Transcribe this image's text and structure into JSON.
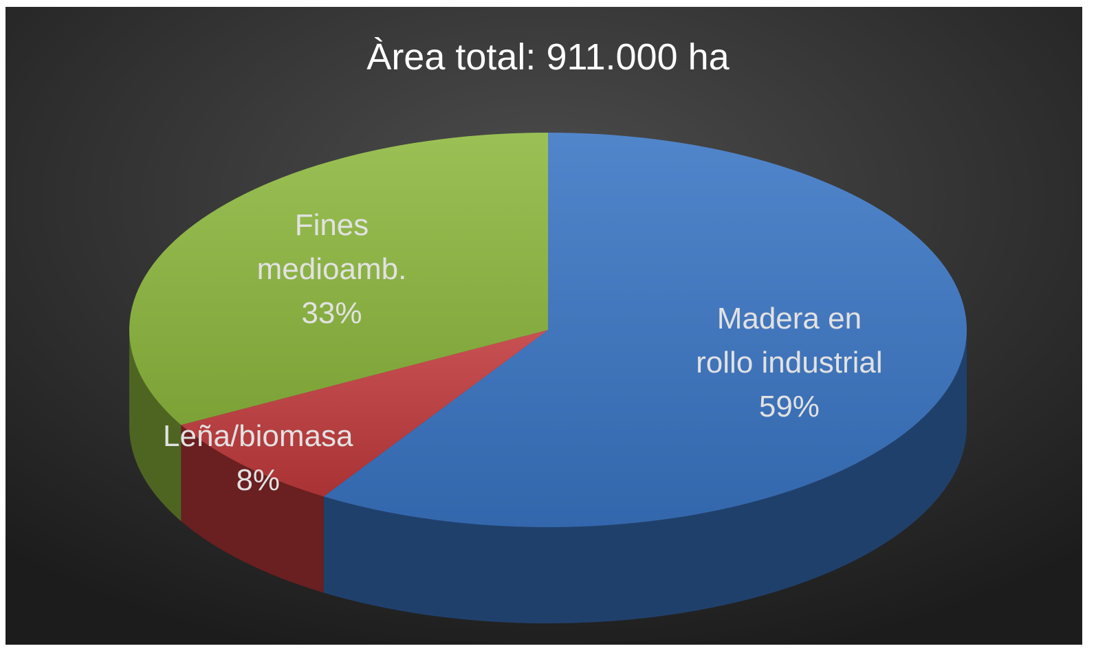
{
  "chart_data": {
    "type": "pie3d",
    "title": "Àrea total: 911.000 ha",
    "categories": [
      "Madera en rollo industrial",
      "Leña/biomasa",
      "Fines medioamb."
    ],
    "values": [
      59,
      8,
      33
    ],
    "value_labels": [
      "59%",
      "8%",
      "33%"
    ],
    "colors": [
      "#3a75c4",
      "#c0393b",
      "#8db83e"
    ]
  }
}
